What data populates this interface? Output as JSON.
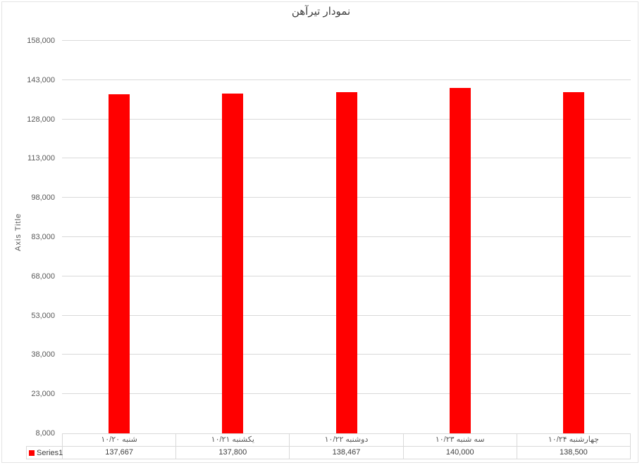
{
  "chart_data": {
    "type": "bar",
    "title": "نمودار تیرآهن",
    "categories": [
      "شنبه ۱۰/۲۰",
      "یکشنبه ۱۰/۲۱",
      "دوشنبه ۱۰/۲۲",
      "سه شنبه ۱۰/۲۳",
      "چهارشنبه ۱۰/۲۴"
    ],
    "series": [
      {
        "name": "Series1",
        "color": "#ff0000",
        "values": [
          137667,
          137800,
          138467,
          140000,
          138500
        ]
      }
    ],
    "value_labels": [
      "137,667",
      "137,800",
      "138,467",
      "140,000",
      "138,500"
    ],
    "xlabel": "",
    "ylabel": "Axis Title",
    "ylim": [
      8000,
      158000
    ],
    "ytick_step": 15000,
    "ytick_labels": [
      "8,000",
      "23,000",
      "38,000",
      "53,000",
      "68,000",
      "83,000",
      "98,000",
      "113,000",
      "128,000",
      "143,000",
      "158,000"
    ],
    "grid": true,
    "legend_position": "bottom data-table",
    "colors": {
      "bar": "#ff0000",
      "gridline": "#d9d9d9",
      "table_border": "#d9d9d9",
      "axis_text": "#595959",
      "title_text": "#404040",
      "background": "#ffffff"
    }
  }
}
